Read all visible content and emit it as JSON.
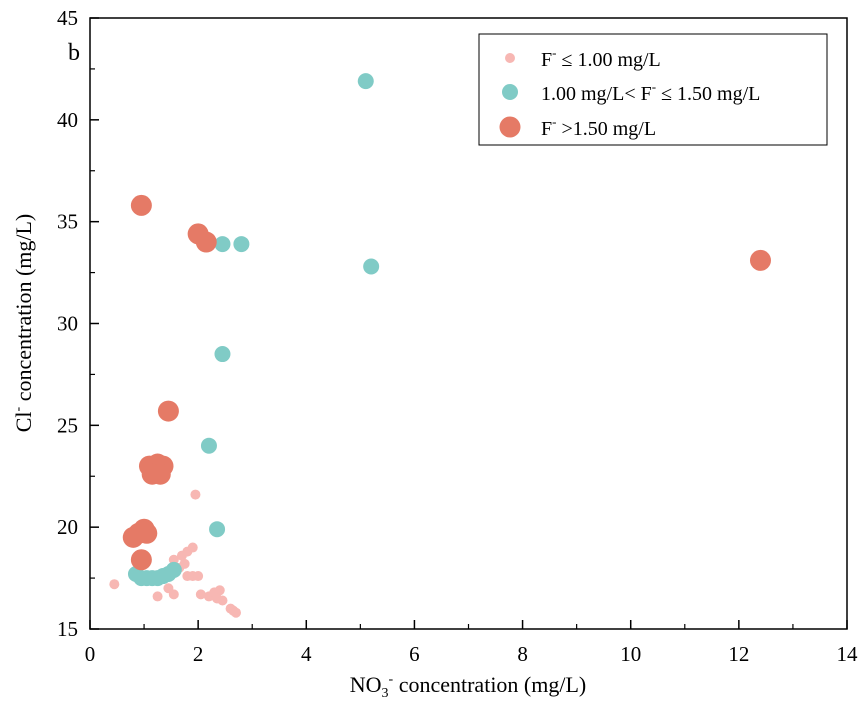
{
  "chart_data": {
    "type": "scatter",
    "panel_label": "b",
    "xlabel": "NO3- concentration (mg/L)",
    "xlabel_parts": {
      "pre": "NO",
      "sub": "3",
      "sup": "-",
      "post": " concentration (mg/L)"
    },
    "ylabel": "Cl- concentration (mg/L)",
    "ylabel_parts": {
      "pre": "Cl",
      "sup": "-",
      "post": " concentration (mg/L)"
    },
    "xlim": [
      0,
      14
    ],
    "ylim": [
      15,
      45
    ],
    "x_ticks": [
      "0",
      "2",
      "4",
      "6",
      "8",
      "10",
      "12",
      "14"
    ],
    "y_ticks": [
      "15",
      "20",
      "25",
      "30",
      "35",
      "40",
      "45"
    ],
    "grid": false,
    "legend_position": "top-right",
    "series": [
      {
        "name": "F- ≤ 1.00 mg/L",
        "legend_parts": {
          "pre": "F",
          "sup": "-",
          "post": " ≤ 1.00 mg/L"
        },
        "color": "#f7b7b3",
        "marker_size": "small",
        "points": [
          [
            0.45,
            17.2
          ],
          [
            1.25,
            16.6
          ],
          [
            1.55,
            16.7
          ],
          [
            1.45,
            17.0
          ],
          [
            1.5,
            17.8
          ],
          [
            1.55,
            18.4
          ],
          [
            1.65,
            18.0
          ],
          [
            1.7,
            18.6
          ],
          [
            1.8,
            18.8
          ],
          [
            1.9,
            19.0
          ],
          [
            1.75,
            18.2
          ],
          [
            1.8,
            17.6
          ],
          [
            1.9,
            17.6
          ],
          [
            2.0,
            17.6
          ],
          [
            1.95,
            21.6
          ],
          [
            2.05,
            16.7
          ],
          [
            2.2,
            16.6
          ],
          [
            2.3,
            16.8
          ],
          [
            2.4,
            16.9
          ],
          [
            2.35,
            16.5
          ],
          [
            2.45,
            16.4
          ],
          [
            2.6,
            16.0
          ],
          [
            2.65,
            15.9
          ],
          [
            2.7,
            15.8
          ]
        ]
      },
      {
        "name": "1.00 mg/L< F- ≤ 1.50 mg/L",
        "legend_parts": {
          "pre": "1.00 mg/L< F",
          "sup": "-",
          "post": " ≤ 1.50 mg/L"
        },
        "color": "#80cbc6",
        "marker_size": "medium",
        "points": [
          [
            5.1,
            41.9
          ],
          [
            5.2,
            32.8
          ],
          [
            2.45,
            33.9
          ],
          [
            2.8,
            33.9
          ],
          [
            2.45,
            28.5
          ],
          [
            2.2,
            24.0
          ],
          [
            2.35,
            19.9
          ],
          [
            0.85,
            17.7
          ],
          [
            0.95,
            17.5
          ],
          [
            1.05,
            17.5
          ],
          [
            1.15,
            17.5
          ],
          [
            1.25,
            17.5
          ],
          [
            1.35,
            17.6
          ],
          [
            1.45,
            17.7
          ],
          [
            1.55,
            17.9
          ]
        ]
      },
      {
        "name": "F- >1.50 mg/L",
        "legend_parts": {
          "pre": "F",
          "sup": "-",
          "post": " >1.50 mg/L"
        },
        "color": "#e57a66",
        "marker_size": "large",
        "points": [
          [
            12.4,
            33.1
          ],
          [
            0.95,
            35.8
          ],
          [
            2.0,
            34.4
          ],
          [
            2.15,
            34.0
          ],
          [
            1.45,
            25.7
          ],
          [
            1.1,
            23.0
          ],
          [
            1.25,
            23.1
          ],
          [
            1.35,
            23.0
          ],
          [
            1.15,
            22.6
          ],
          [
            1.3,
            22.6
          ],
          [
            0.8,
            19.5
          ],
          [
            0.9,
            19.7
          ],
          [
            1.0,
            19.9
          ],
          [
            1.05,
            19.7
          ],
          [
            0.95,
            18.4
          ]
        ]
      }
    ]
  }
}
